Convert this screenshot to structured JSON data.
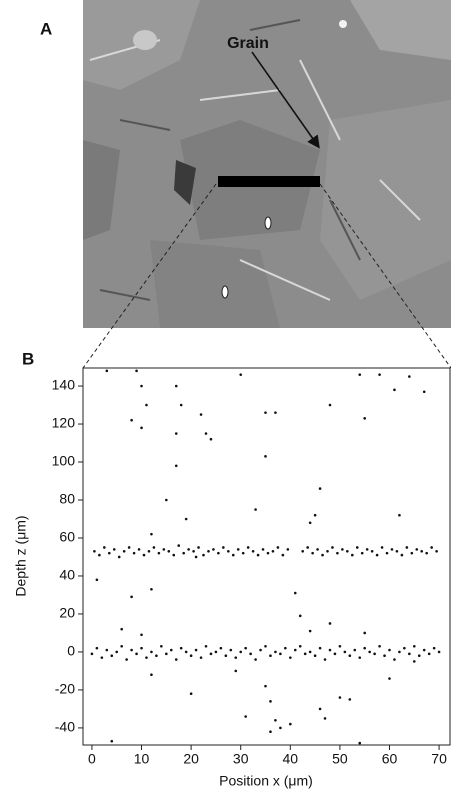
{
  "panel_a": {
    "label": "A",
    "annotation": "Grain"
  },
  "chart_data": {
    "type": "scatter",
    "panel_label": "B",
    "xlabel": "Position x (μm)",
    "ylabel": "Depth z (μm)",
    "color": "#111111",
    "xlim": [
      -1.8,
      72.2
    ],
    "ylim": [
      -49,
      149.5
    ],
    "xticks": [
      0,
      10,
      20,
      30,
      40,
      50,
      60,
      70
    ],
    "yticks": [
      -40,
      -20,
      0,
      20,
      40,
      60,
      80,
      100,
      120,
      140
    ],
    "x": [
      0.5,
      1.5,
      2.5,
      3.5,
      4.5,
      5.5,
      6.5,
      7.5,
      8.5,
      9.5,
      10.5,
      11.5,
      12.5,
      13.5,
      14.5,
      15.5,
      16.5,
      17.5,
      18.5,
      19.5,
      20.5,
      21.5,
      22.5,
      23.5,
      24.5,
      25.5,
      26.5,
      27.5,
      28.5,
      29.5,
      30.5,
      31.5,
      32.5,
      33.5,
      34.5,
      35.5,
      36.5,
      37.5,
      38.5,
      39.5,
      42.5,
      43.5,
      44.5,
      45.5,
      46.5,
      47.5,
      48.5,
      49.5,
      50.5,
      51.5,
      52.5,
      53.5,
      54.5,
      55.5,
      56.5,
      57.5,
      58.5,
      59.5,
      60.5,
      61.5,
      62.5,
      63.5,
      64.5,
      65.5,
      66.5,
      67.5,
      68.5,
      69.5,
      0,
      1,
      2,
      3,
      4,
      5,
      6,
      7,
      8,
      9,
      10,
      11,
      12,
      13,
      14,
      15,
      16,
      17,
      18,
      19,
      20,
      21,
      22,
      23,
      24,
      25,
      26,
      27,
      28,
      29,
      30,
      31,
      32,
      33,
      34,
      35,
      36,
      37,
      38,
      39,
      40,
      41,
      42,
      43,
      44,
      45,
      46,
      47,
      48,
      49,
      50,
      51,
      52,
      53,
      54,
      55,
      56,
      57,
      58,
      59,
      60,
      61,
      62,
      63,
      64,
      65,
      66,
      67,
      68,
      69,
      70,
      3,
      9,
      10,
      8,
      10,
      11,
      17,
      18,
      17,
      17,
      19,
      15,
      12,
      12,
      8,
      22,
      24,
      23,
      30,
      35,
      37,
      35,
      33,
      45,
      44,
      46,
      41,
      42,
      44,
      48,
      54,
      55,
      58,
      61,
      64,
      67,
      62,
      1,
      6,
      10,
      20,
      31,
      35,
      36,
      37,
      36,
      38,
      40,
      46,
      47,
      50,
      52,
      48,
      55,
      12,
      4,
      54,
      21,
      29,
      60,
      65
    ],
    "values": [
      53,
      51,
      55,
      52,
      54,
      50,
      53,
      55,
      52,
      54,
      51,
      53,
      55,
      52,
      54,
      53,
      51,
      56,
      52,
      54,
      53,
      55,
      51,
      53,
      54,
      52,
      55,
      53,
      51,
      54,
      52,
      55,
      53,
      51,
      54,
      52,
      53,
      55,
      51,
      54,
      53,
      55,
      52,
      54,
      51,
      53,
      55,
      52,
      54,
      53,
      51,
      55,
      52,
      54,
      53,
      51,
      55,
      52,
      54,
      53,
      51,
      55,
      52,
      54,
      53,
      52,
      55,
      53,
      -1,
      2,
      -3,
      1,
      -2,
      0,
      3,
      -4,
      1,
      -1,
      2,
      -3,
      0,
      -2,
      3,
      -1,
      1,
      -4,
      2,
      0,
      -2,
      1,
      -3,
      3,
      -1,
      0,
      2,
      -2,
      1,
      -3,
      0,
      2,
      -1,
      -4,
      1,
      3,
      -2,
      0,
      -1,
      2,
      -3,
      1,
      3,
      -1,
      0,
      -2,
      2,
      -4,
      1,
      -1,
      3,
      0,
      -2,
      1,
      -3,
      2,
      0,
      -1,
      3,
      -2,
      1,
      -4,
      0,
      2,
      -1,
      3,
      -2,
      1,
      -1,
      2,
      0,
      148,
      148,
      140,
      122,
      118,
      130,
      140,
      130,
      115,
      98,
      70,
      80,
      62,
      33,
      29,
      125,
      112,
      115,
      146,
      126,
      126,
      103,
      75,
      72,
      68,
      86,
      31,
      19,
      11,
      130,
      146,
      123,
      146,
      138,
      145,
      137,
      72,
      38,
      12,
      9,
      -22,
      -34,
      -18,
      -26,
      -36,
      -42,
      -40,
      -38,
      -30,
      -35,
      -24,
      -25,
      15,
      10,
      -12,
      -47,
      -48,
      50,
      -10,
      -14,
      -5
    ]
  }
}
